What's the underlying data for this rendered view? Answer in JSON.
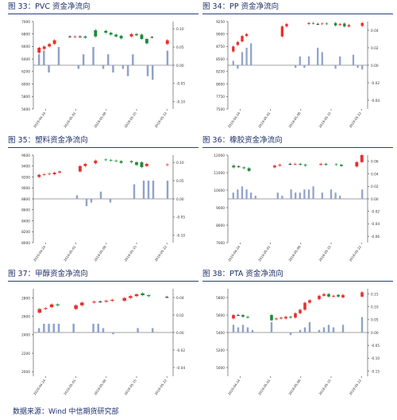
{
  "footer": {
    "source": "数据来源：Wind  中信期货研究部"
  },
  "colors": {
    "up": "#e8302c",
    "down": "#1f8a3b",
    "bar": "#8fa2cc",
    "axis": "#444444",
    "title": "#1d2f6b"
  },
  "chart_data": [
    {
      "type": "candlestick+bar",
      "title": "图 33：PVC 资金净流向",
      "left_ticks": [
        "7000",
        "6800",
        "6600",
        "6400",
        "6200",
        "6000",
        "5800",
        "5600"
      ],
      "left_ylim": [
        5600,
        7000
      ],
      "right_ticks": [
        "0.10",
        "0.05",
        "0.00",
        "-0.05",
        "-0.10"
      ],
      "right_ylim": [
        -0.12,
        0.12
      ],
      "x_ticks": [
        "2018-04-24",
        "2018-05-01",
        "2018-05-08",
        "2018-05-15",
        "2018-05-22"
      ],
      "bars": [
        0.03,
        0.04,
        -0.02,
        0.0,
        0.05,
        0.0,
        0.0,
        0.0,
        -0.01,
        0.03,
        0.0,
        0.05,
        0.0,
        -0.01,
        0.03,
        -0.02,
        0.0,
        -0.01,
        -0.03,
        0.03,
        0.0,
        0.0,
        -0.03,
        -0.04,
        0.0,
        0.0,
        0.04
      ],
      "candles": [
        [
          6500,
          6580
        ],
        [
          6560,
          6600
        ],
        [
          6600,
          6640
        ],
        [
          6640,
          6700
        ],
        null,
        null,
        [
          6760,
          6760
        ],
        [
          6750,
          6760
        ],
        [
          6760,
          6760
        ],
        [
          6760,
          6740
        ],
        null,
        [
          6860,
          6760
        ],
        null,
        [
          6850,
          6820
        ],
        [
          6820,
          6790
        ],
        [
          6790,
          6760
        ],
        [
          6770,
          6730
        ],
        null,
        [
          6760,
          6800
        ],
        [
          6800,
          6780
        ],
        [
          6790,
          6720
        ],
        [
          6720,
          6650
        ],
        [
          6750,
          6750
        ],
        null,
        null,
        [
          6640,
          6700
        ]
      ]
    },
    {
      "type": "candlestick+bar",
      "title": "图 34：PP 资金净流向",
      "left_ticks": [
        "9250",
        "9000",
        "8750",
        "8500",
        "8250",
        "8000",
        "7750",
        "7500"
      ],
      "left_ylim": [
        7500,
        9250
      ],
      "right_ticks": [
        "0.04",
        "0.02",
        "0.00",
        "-0.02",
        "-0.04"
      ],
      "right_ylim": [
        -0.05,
        0.05
      ],
      "x_ticks": [
        "2018-04-24",
        "2018-05-01",
        "2018-05-08",
        "2018-05-15",
        "2018-05-22"
      ],
      "bars": [
        0.005,
        -0.004,
        0.015,
        0.02,
        0.025,
        0.0,
        0.0,
        0.0,
        0.0,
        0.0,
        0.0,
        0.0,
        0.0,
        0.0,
        -0.003,
        0.01,
        -0.003,
        0.01,
        0.0,
        0.02,
        0.015,
        0.0,
        0.0,
        -0.004,
        0.01,
        0.0,
        0.0,
        0.012,
        -0.003,
        -0.005
      ],
      "candles": [
        [
          8650,
          8750
        ],
        [
          8780,
          8840
        ],
        [
          8850,
          8960
        ],
        [
          8960,
          9000
        ],
        null,
        null,
        null,
        null,
        null,
        null,
        null,
        [
          8950,
          9150
        ],
        [
          9150,
          9200
        ],
        null,
        null,
        null,
        null,
        [
          9200,
          9220
        ],
        [
          9220,
          9210
        ],
        [
          9200,
          9200
        ],
        [
          9200,
          9210
        ],
        [
          9210,
          9200
        ],
        null,
        [
          9220,
          9170
        ],
        [
          9180,
          9200
        ],
        [
          9210,
          9150
        ],
        [
          9150,
          9180
        ],
        null,
        null,
        [
          9160,
          9220
        ]
      ]
    },
    {
      "type": "candlestick+bar",
      "title": "图 35：塑料资金净流向",
      "left_ticks": [
        "9600",
        "9400",
        "9200",
        "9000",
        "8800",
        "8600",
        "8400",
        "8200",
        "8000"
      ],
      "left_ylim": [
        8000,
        9600
      ],
      "right_ticks": [
        "0.10",
        "0.05",
        "0.00",
        "-0.05",
        "-0.10"
      ],
      "right_ylim": [
        -0.12,
        0.12
      ],
      "x_ticks": [
        "2018-04-24",
        "2018-05-01",
        "2018-05-08",
        "2018-05-15",
        "2018-05-22"
      ],
      "bars": [
        0.0,
        0.0,
        0.0,
        0.0,
        0.0,
        0.0,
        0.0,
        0.0,
        0.01,
        0.0,
        -0.02,
        -0.01,
        0.0,
        0.02,
        0.0,
        -0.01,
        0.0,
        0.0,
        0.0,
        0.0,
        0.04,
        0.0,
        0.05,
        0.05,
        0.05,
        0.0,
        0.0,
        0.05
      ],
      "candles": [
        [
          9200,
          9240
        ],
        [
          9240,
          9250
        ],
        [
          9250,
          9260
        ],
        [
          9250,
          9280
        ],
        [
          9280,
          9300
        ],
        null,
        null,
        null,
        [
          9300,
          9400
        ],
        [
          9400,
          9440
        ],
        null,
        [
          9450,
          9500
        ],
        null,
        [
          9520,
          9510
        ],
        [
          9510,
          9500
        ],
        [
          9500,
          9490
        ],
        [
          9490,
          9460
        ],
        null,
        [
          9490,
          9470
        ],
        [
          9470,
          9420
        ],
        [
          9470,
          9380
        ],
        [
          9400,
          9440
        ],
        null,
        null,
        null,
        [
          9420,
          9430
        ]
      ]
    },
    {
      "type": "candlestick+bar",
      "title": "图 36：橡胶资金净流向",
      "left_ticks": [
        "12000",
        "11000",
        "10000",
        "9000",
        "8000",
        "7000"
      ],
      "left_ylim": [
        7000,
        12000
      ],
      "right_ticks": [
        "0.06",
        "0.04",
        "0.02",
        "0.00",
        "-0.02",
        "-0.04",
        "-0.06"
      ],
      "right_ylim": [
        -0.07,
        0.07
      ],
      "x_ticks": [
        "2018-04-24",
        "2018-05-01",
        "2018-05-08",
        "2018-05-15",
        "2018-05-22"
      ],
      "bars": [
        0.01,
        0.015,
        0.02,
        0.015,
        0.01,
        0.005,
        0.0,
        0.0,
        0.0,
        0.0,
        0.01,
        0.005,
        0.0,
        0.015,
        0.01,
        0.01,
        0.015,
        0.015,
        0.02,
        0.0,
        0.01,
        0.0,
        0.015,
        0.01,
        0.005,
        0.0,
        0.0,
        0.0,
        0.0,
        0.015
      ],
      "candles": [
        [
          11400,
          11300
        ],
        [
          11350,
          11350
        ],
        [
          11300,
          11250
        ],
        [
          11250,
          11100
        ],
        null,
        null,
        null,
        null,
        [
          11300,
          11400
        ],
        [
          11400,
          11450
        ],
        null,
        [
          11500,
          11500
        ],
        [
          11480,
          11500
        ],
        [
          11500,
          11450
        ],
        [
          11450,
          11400
        ],
        null,
        null,
        [
          11450,
          11500
        ],
        [
          11500,
          11450
        ],
        null,
        [
          11480,
          11450
        ],
        [
          11450,
          11380
        ],
        null,
        null,
        [
          11350,
          11600
        ],
        [
          11600,
          12000
        ]
      ]
    },
    {
      "type": "candlestick+bar",
      "title": "图 37：甲醇资金净流向",
      "left_ticks": [
        "2800",
        "2600",
        "2400",
        "2200",
        "2000"
      ],
      "left_ylim": [
        1950,
        2900
      ],
      "right_ticks": [
        "0.04",
        "0.02",
        "0.00",
        "-0.02",
        "-0.04"
      ],
      "right_ylim": [
        -0.05,
        0.05
      ],
      "x_ticks": [
        "2018-04-24",
        "2018-05-01",
        "2018-05-08",
        "2018-05-15",
        "2018-05-22"
      ],
      "bars": [
        0.005,
        0.01,
        0.01,
        0.01,
        0.01,
        0.0,
        0.0,
        0.01,
        0.0,
        0.0,
        0.0,
        0.01,
        0.01,
        0.005,
        0.0,
        -0.002,
        0.0,
        0.0,
        0.0,
        0.0,
        0.005,
        0.0,
        0.0,
        0.005,
        0.0,
        0.0,
        0.0
      ],
      "candles": [
        [
          2640,
          2680
        ],
        [
          2680,
          2690
        ],
        [
          2700,
          2730
        ],
        [
          2730,
          2720
        ],
        null,
        null,
        [
          2680,
          2720
        ],
        [
          2720,
          2750
        ],
        null,
        [
          2750,
          2760
        ],
        [
          2760,
          2760
        ],
        [
          2760,
          2770
        ],
        [
          2770,
          2780
        ],
        null,
        [
          2770,
          2800
        ],
        [
          2800,
          2820
        ],
        [
          2820,
          2840
        ],
        [
          2850,
          2830
        ],
        [
          2830,
          2820
        ],
        null,
        null,
        [
          2810,
          2810
        ]
      ]
    },
    {
      "type": "candlestick+bar",
      "title": "图 38：PTA 资金净流向",
      "left_ticks": [
        "5800",
        "5600",
        "5400",
        "5200",
        "5000"
      ],
      "left_ylim": [
        4900,
        5900
      ],
      "right_ticks": [
        "0.15",
        "0.10",
        "0.05",
        "0.00",
        "-0.05",
        "-0.10",
        "-0.15"
      ],
      "right_ylim": [
        -0.17,
        0.17
      ],
      "x_ticks": [
        "2018-04-24",
        "2018-05-01",
        "2018-05-08",
        "2018-05-15",
        "2018-05-22"
      ],
      "bars": [
        0.03,
        0.02,
        0.03,
        0.02,
        0.01,
        0.0,
        0.0,
        0.0,
        0.04,
        0.0,
        0.0,
        0.0,
        -0.01,
        0.0,
        0.01,
        0.02,
        0.04,
        0.0,
        0.01,
        0.02,
        0.03,
        0.02,
        0.0,
        0.03,
        0.0,
        0.0,
        0.0,
        0.06
      ],
      "candles": [
        [
          5560,
          5600
        ],
        [
          5600,
          5600
        ],
        [
          5600,
          5580
        ],
        [
          5580,
          5570
        ],
        null,
        null,
        null,
        null,
        [
          5600,
          5540
        ],
        [
          5550,
          5560
        ],
        [
          5560,
          5570
        ],
        [
          5560,
          5580
        ],
        [
          5580,
          5570
        ],
        [
          5570,
          5620
        ],
        [
          5620,
          5660
        ],
        [
          5660,
          5740
        ],
        [
          5740,
          5770
        ],
        null,
        [
          5780,
          5820
        ],
        [
          5820,
          5840
        ],
        [
          5840,
          5810
        ],
        [
          5810,
          5820
        ],
        [
          5830,
          5810
        ],
        [
          5800,
          5830
        ],
        null,
        null,
        null,
        [
          5810,
          5860
        ]
      ]
    }
  ]
}
